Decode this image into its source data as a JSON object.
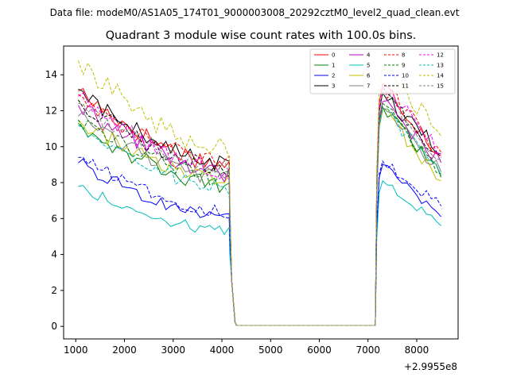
{
  "chart_data": {
    "type": "line",
    "suptitle": "Data file: modeM0/AS1A05_174T01_9000003008_20292cztM0_level2_quad_clean.evt",
    "title": "Quadrant 3 module wise count rates with 100.0s bins.",
    "xlabel": "",
    "ylabel": "",
    "x_offset_label": "+2.9955e8",
    "xlim": [
      750,
      8850
    ],
    "ylim": [
      -0.7,
      15.6
    ],
    "xticks": [
      1000,
      2000,
      3000,
      4000,
      5000,
      6000,
      7000,
      8000
    ],
    "yticks": [
      0,
      2,
      4,
      6,
      8,
      10,
      12,
      14
    ],
    "grid": false,
    "legend_position": "upper-right",
    "segments": [
      {
        "x_start": 1050,
        "x_end": 4250,
        "step": 100
      },
      {
        "x_start": 4250,
        "x_end": 7150,
        "step": 100
      },
      {
        "x_start": 7150,
        "x_end": 8500,
        "step": 100
      }
    ],
    "series": [
      {
        "name": "0",
        "color": "#ff0000",
        "dashed": false,
        "seg1": [
          13.1,
          9.0
        ],
        "seg3": [
          13.5,
          9.5
        ]
      },
      {
        "name": "1",
        "color": "#008000",
        "dashed": false,
        "seg1": [
          11.3,
          7.8
        ],
        "seg3": [
          12.2,
          8.3
        ]
      },
      {
        "name": "2",
        "color": "#0000ff",
        "dashed": false,
        "seg1": [
          9.1,
          6.1
        ],
        "seg3": [
          9.0,
          6.1
        ]
      },
      {
        "name": "3",
        "color": "#000000",
        "dashed": false,
        "seg1": [
          13.2,
          8.9
        ],
        "seg3": [
          13.0,
          9.6
        ]
      },
      {
        "name": "4",
        "color": "#c000c0",
        "dashed": false,
        "seg1": [
          12.3,
          8.5
        ],
        "seg3": [
          12.5,
          9.1
        ]
      },
      {
        "name": "5",
        "color": "#00bfbf",
        "dashed": false,
        "seg1": [
          7.8,
          5.3
        ],
        "seg3": [
          8.1,
          5.6
        ]
      },
      {
        "name": "6",
        "color": "#bfbf00",
        "dashed": false,
        "seg1": [
          11.5,
          8.1
        ],
        "seg3": [
          12.0,
          8.1
        ]
      },
      {
        "name": "7",
        "color": "#808080",
        "dashed": false,
        "seg1": [
          11.7,
          8.2
        ],
        "seg3": [
          12.2,
          8.6
        ]
      },
      {
        "name": "8",
        "color": "#ff0000",
        "dashed": true,
        "seg1": [
          12.9,
          9.0
        ],
        "seg3": [
          13.4,
          9.7
        ]
      },
      {
        "name": "9",
        "color": "#008000",
        "dashed": true,
        "seg1": [
          11.5,
          8.2
        ],
        "seg3": [
          12.4,
          8.5
        ]
      },
      {
        "name": "10",
        "color": "#0000ff",
        "dashed": true,
        "seg1": [
          9.4,
          6.4
        ],
        "seg3": [
          9.2,
          6.7
        ]
      },
      {
        "name": "11",
        "color": "#000000",
        "dashed": true,
        "seg1": [
          12.6,
          8.8
        ],
        "seg3": [
          13.0,
          9.4
        ]
      },
      {
        "name": "12",
        "color": "#ff00ff",
        "dashed": true,
        "seg1": [
          12.8,
          8.6
        ],
        "seg3": [
          13.4,
          9.6
        ]
      },
      {
        "name": "13",
        "color": "#00bfbf",
        "dashed": true,
        "seg1": [
          11.2,
          7.7
        ],
        "seg3": [
          12.1,
          8.4
        ]
      },
      {
        "name": "14",
        "color": "#bfbf00",
        "dashed": true,
        "seg1": [
          14.8,
          9.8
        ],
        "seg3": [
          14.5,
          10.6
        ]
      },
      {
        "name": "15",
        "color": "#808080",
        "dashed": true,
        "seg1": [
          12.4,
          8.8
        ],
        "seg3": [
          12.9,
          9.3
        ]
      }
    ],
    "gap_value": 0.05
  }
}
